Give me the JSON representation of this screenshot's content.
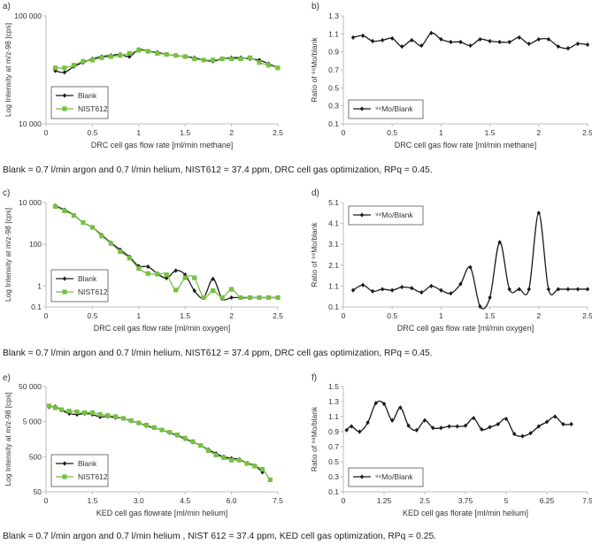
{
  "captions": [
    "Blank = 0.7 l/min argon and 0.7 l/min helium, NIST612 = 37.4 ppm, DRC cell gas optimization, RPq = 0.45.",
    "Blank = 0.7 l/min argon and 0.7 l/min helium, NIST612 = 37.4 ppm, DRC cell gas optimization, RPq = 0.45.",
    "Blank = 0.7 l/min argon and 0.7 l/min helium , NIST 612 = 37.4 ppm, KED cell gas optimization, RPq = 0.25."
  ],
  "colors": {
    "blank": "#1a1a1a",
    "nist": "#77c043",
    "axis": "#bdbdbd"
  },
  "chart_data": [
    {
      "id": "a",
      "panel_label": "a)",
      "type": "line",
      "scale": "log",
      "xlabel": "DRC cell gas flow rate [ml/min methane]",
      "ylabel": "Log Intensity at m/z-98 [cps]",
      "xlim": [
        0,
        2.5
      ],
      "ylim": [
        10000,
        100000
      ],
      "xticks": [
        0,
        0.5,
        1,
        1.5,
        2,
        2.5
      ],
      "xtick_labels": [
        "0",
        "0.5",
        "1",
        "1.5",
        "2",
        "2.5"
      ],
      "yticks": [
        10000,
        100000
      ],
      "ytick_labels": [
        "10 000",
        "100 000"
      ],
      "legend": {
        "position": "bottom-left"
      },
      "series": [
        {
          "name": "Blank",
          "marker": "diamond",
          "color": "#1a1a1a",
          "x": [
            0.1,
            0.2,
            0.3,
            0.4,
            0.5,
            0.6,
            0.7,
            0.8,
            0.9,
            1.0,
            1.1,
            1.2,
            1.3,
            1.4,
            1.5,
            1.6,
            1.7,
            1.8,
            1.9,
            2.0,
            2.1,
            2.2,
            2.3,
            2.4,
            2.5
          ],
          "y": [
            31000,
            30000,
            34000,
            37000,
            40000,
            42000,
            43000,
            44000,
            42000,
            49000,
            47000,
            46000,
            44000,
            43000,
            42000,
            41000,
            39000,
            38000,
            40000,
            41000,
            41000,
            40000,
            39000,
            36000,
            33000
          ]
        },
        {
          "name": "NIST612",
          "marker": "square",
          "color": "#77c043",
          "x": [
            0.1,
            0.2,
            0.3,
            0.4,
            0.5,
            0.6,
            0.7,
            0.8,
            0.9,
            1.0,
            1.1,
            1.2,
            1.3,
            1.4,
            1.5,
            1.6,
            1.7,
            1.8,
            1.9,
            2.0,
            2.1,
            2.2,
            2.3,
            2.4,
            2.5
          ],
          "y": [
            33000,
            33000,
            35000,
            38000,
            39000,
            41000,
            42000,
            43000,
            45000,
            48000,
            47000,
            45000,
            44000,
            43000,
            42000,
            40000,
            39000,
            39000,
            40000,
            40000,
            40000,
            41000,
            37000,
            35000,
            33000
          ]
        }
      ]
    },
    {
      "id": "b",
      "panel_label": "b)",
      "type": "line",
      "scale": "linear",
      "xlabel": "DRC cell gas flow rate [ml/min methane]",
      "ylabel": "Ratio of ⁹⁸Mo/blank",
      "xlim": [
        0,
        2.5
      ],
      "ylim": [
        0.1,
        1.3
      ],
      "xticks": [
        0,
        0.5,
        1,
        1.5,
        2,
        2.5
      ],
      "xtick_labels": [
        "0",
        "0.5",
        "1",
        "1.5",
        "2",
        "2.5"
      ],
      "yticks": [
        0.1,
        0.3,
        0.5,
        0.7,
        0.9,
        1.1,
        1.3
      ],
      "ytick_labels": [
        "0.1",
        "0.3",
        "0.5",
        "0.7",
        "0.9",
        "1.1",
        "1.3"
      ],
      "legend": {
        "position": "bottom-left"
      },
      "series": [
        {
          "name": "⁹⁸Mo/Blank",
          "marker": "diamond",
          "color": "#1a1a1a",
          "x": [
            0.1,
            0.2,
            0.3,
            0.4,
            0.5,
            0.6,
            0.7,
            0.8,
            0.9,
            1.0,
            1.1,
            1.2,
            1.3,
            1.4,
            1.5,
            1.6,
            1.7,
            1.8,
            1.9,
            2.0,
            2.1,
            2.2,
            2.3,
            2.4,
            2.5
          ],
          "y": [
            1.06,
            1.08,
            1.02,
            1.03,
            1.05,
            0.96,
            1.03,
            0.97,
            1.11,
            1.04,
            1.01,
            1.01,
            0.97,
            1.04,
            1.02,
            1.01,
            1.01,
            1.06,
            0.99,
            1.04,
            1.04,
            0.96,
            0.94,
            0.99,
            0.98
          ]
        }
      ]
    },
    {
      "id": "c",
      "panel_label": "c)",
      "type": "line",
      "scale": "log",
      "xlabel": "DRC cell gas flow rate [ml/min oxygen]",
      "ylabel": "Log Intensity at m/z-98 [cps]",
      "xlim": [
        0,
        2.5
      ],
      "ylim": [
        0.1,
        10000
      ],
      "xticks": [
        0,
        0.5,
        1,
        1.5,
        2,
        2.5
      ],
      "xtick_labels": [
        "0",
        "0.5",
        "1",
        "1.5",
        "2",
        "2.5"
      ],
      "yticks": [
        0.1,
        1,
        100,
        10000
      ],
      "ytick_labels": [
        "0.1",
        "1",
        "100",
        "10 000"
      ],
      "legend": {
        "position": "bottom-left"
      },
      "series": [
        {
          "name": "Blank",
          "marker": "diamond",
          "color": "#1a1a1a",
          "x": [
            0.1,
            0.2,
            0.3,
            0.4,
            0.5,
            0.6,
            0.7,
            0.8,
            0.9,
            1.0,
            1.1,
            1.2,
            1.3,
            1.4,
            1.5,
            1.6,
            1.7,
            1.8,
            1.9,
            2.0,
            2.1,
            2.2,
            2.3,
            2.4,
            2.5
          ],
          "y": [
            7000,
            4500,
            2500,
            1100,
            650,
            280,
            120,
            55,
            25,
            9,
            8.5,
            4,
            2.4,
            5.5,
            3.5,
            0.6,
            0.28,
            2.2,
            0.25,
            0.28,
            0.28,
            0.28,
            0.28,
            0.28,
            0.28
          ]
        },
        {
          "name": "NIST612",
          "marker": "square",
          "color": "#77c043",
          "x": [
            0.1,
            0.2,
            0.3,
            0.4,
            0.5,
            0.6,
            0.7,
            0.8,
            0.9,
            1.0,
            1.1,
            1.2,
            1.3,
            1.4,
            1.5,
            1.6,
            1.7,
            1.8,
            1.9,
            2.0,
            2.1,
            2.2,
            2.3,
            2.4,
            2.5
          ],
          "y": [
            6500,
            4000,
            2400,
            1100,
            650,
            250,
            110,
            45,
            22,
            7,
            4,
            3.7,
            3.5,
            0.65,
            2.5,
            2.5,
            0.28,
            0.6,
            0.28,
            0.7,
            0.28,
            0.28,
            0.28,
            0.28,
            0.28
          ]
        }
      ]
    },
    {
      "id": "d",
      "panel_label": "d)",
      "type": "line",
      "scale": "linear",
      "xlabel": "DRC cell gas flow rate [ml/min oxygen]",
      "ylabel": "Ratio of ⁹⁸Mo/blank",
      "xlim": [
        0,
        2.5
      ],
      "ylim": [
        0.1,
        5.1
      ],
      "xticks": [
        0,
        0.5,
        1,
        1.5,
        2,
        2.5
      ],
      "xtick_labels": [
        "0",
        "0.5",
        "1",
        "1.5",
        "2",
        "2.5"
      ],
      "yticks": [
        0.1,
        1.1,
        2.1,
        3.1,
        4.1,
        5.1
      ],
      "ytick_labels": [
        "0.1",
        "1.1",
        "2.1",
        "3.1",
        "4.1",
        "5.1"
      ],
      "legend": {
        "position": "top-left"
      },
      "series": [
        {
          "name": "⁹⁸Mo/Blank",
          "marker": "diamond",
          "color": "#1a1a1a",
          "x": [
            0.1,
            0.2,
            0.3,
            0.4,
            0.5,
            0.6,
            0.7,
            0.8,
            0.9,
            1.0,
            1.1,
            1.2,
            1.3,
            1.4,
            1.5,
            1.6,
            1.7,
            1.8,
            1.9,
            2.0,
            2.1,
            2.2,
            2.3,
            2.4,
            2.5
          ],
          "y": [
            0.9,
            1.15,
            0.85,
            0.95,
            0.9,
            1.05,
            1.0,
            0.8,
            1.1,
            0.9,
            0.75,
            1.2,
            2.0,
            0.12,
            0.55,
            3.2,
            0.95,
            0.95,
            0.95,
            4.6,
            0.95,
            0.95,
            0.95,
            0.95,
            0.95
          ]
        }
      ]
    },
    {
      "id": "e",
      "panel_label": "e)",
      "type": "line",
      "scale": "log",
      "xlabel": "KED cell gas flowrate [ml/min helium]",
      "ylabel": "Log Intensity at m/z-98 [cps]",
      "xlim": [
        0,
        7.5
      ],
      "ylim": [
        50,
        50000
      ],
      "xticks": [
        0,
        1.5,
        3,
        4.5,
        6,
        7.5
      ],
      "xtick_labels": [
        "0",
        "1.5",
        "3.0",
        "4.5",
        "6.0",
        "7.5"
      ],
      "yticks": [
        50,
        500,
        5000,
        50000
      ],
      "ytick_labels": [
        "50",
        "500",
        "5 000",
        "50 000"
      ],
      "legend": {
        "position": "bottom-left"
      },
      "series": [
        {
          "name": "Blank",
          "marker": "diamond",
          "color": "#1a1a1a",
          "x": [
            0.1,
            0.3,
            0.5,
            0.75,
            1,
            1.25,
            1.5,
            1.75,
            2,
            2.25,
            2.5,
            2.75,
            3,
            3.25,
            3.5,
            3.75,
            4,
            4.25,
            4.5,
            4.75,
            5,
            5.25,
            5.5,
            5.75,
            6,
            6.25,
            6.5,
            6.75,
            7
          ],
          "y": [
            13000,
            13500,
            10500,
            8500,
            8000,
            8500,
            8000,
            6800,
            7000,
            6500,
            6200,
            5200,
            4600,
            3800,
            3300,
            2900,
            2400,
            2000,
            1600,
            1300,
            1050,
            800,
            620,
            500,
            450,
            420,
            330,
            280,
            180
          ]
        },
        {
          "name": "NIST612",
          "marker": "square",
          "color": "#77c043",
          "x": [
            0.1,
            0.3,
            0.5,
            0.75,
            1,
            1.25,
            1.5,
            1.75,
            2,
            2.25,
            2.5,
            2.75,
            3,
            3.25,
            3.5,
            3.75,
            4,
            4.25,
            4.5,
            4.75,
            5,
            5.25,
            5.5,
            5.75,
            6,
            6.25,
            6.5,
            6.75,
            7,
            7.25
          ],
          "y": [
            14000,
            12500,
            11000,
            10000,
            9500,
            9000,
            9000,
            8000,
            7500,
            7000,
            6200,
            5400,
            4600,
            4000,
            3400,
            2900,
            2500,
            2100,
            1700,
            1350,
            1050,
            750,
            560,
            470,
            400,
            400,
            320,
            270,
            220,
            110
          ]
        }
      ]
    },
    {
      "id": "f",
      "panel_label": "f)",
      "type": "line",
      "scale": "linear",
      "xlabel": "KED cell gas florate [ml/min helium]",
      "ylabel": "Ratio of ⁹⁸Mo/blank",
      "xlim": [
        0,
        7.5
      ],
      "ylim": [
        0.1,
        1.5
      ],
      "xticks": [
        0,
        1.25,
        2.5,
        3.75,
        5,
        6.25,
        7.5
      ],
      "xtick_labels": [
        "0",
        "1.25",
        "2.5",
        "3.75",
        "5",
        "6.25",
        "7.5"
      ],
      "yticks": [
        0.1,
        0.3,
        0.5,
        0.7,
        0.9,
        1.1,
        1.3,
        1.5
      ],
      "ytick_labels": [
        "0.1",
        "0.3",
        "0.5",
        "0.7",
        "0.9",
        "1.1",
        "1.3",
        "1.5"
      ],
      "legend": {
        "position": "bottom-left"
      },
      "series": [
        {
          "name": "⁹⁸Mo/Blank",
          "marker": "diamond",
          "color": "#1a1a1a",
          "x": [
            0.1,
            0.25,
            0.5,
            0.75,
            1,
            1.25,
            1.5,
            1.75,
            2,
            2.25,
            2.5,
            2.75,
            3,
            3.25,
            3.5,
            3.75,
            4,
            4.25,
            4.5,
            4.75,
            5,
            5.25,
            5.5,
            5.75,
            6,
            6.25,
            6.5,
            6.75,
            7
          ],
          "y": [
            0.92,
            0.97,
            0.9,
            1.02,
            1.28,
            1.27,
            1.05,
            1.22,
            0.98,
            0.92,
            1.05,
            0.95,
            0.95,
            0.97,
            0.97,
            0.98,
            1.08,
            0.93,
            0.96,
            1.0,
            1.07,
            0.87,
            0.84,
            0.88,
            0.97,
            1.03,
            1.1,
            1.0,
            1.0
          ]
        }
      ]
    }
  ]
}
